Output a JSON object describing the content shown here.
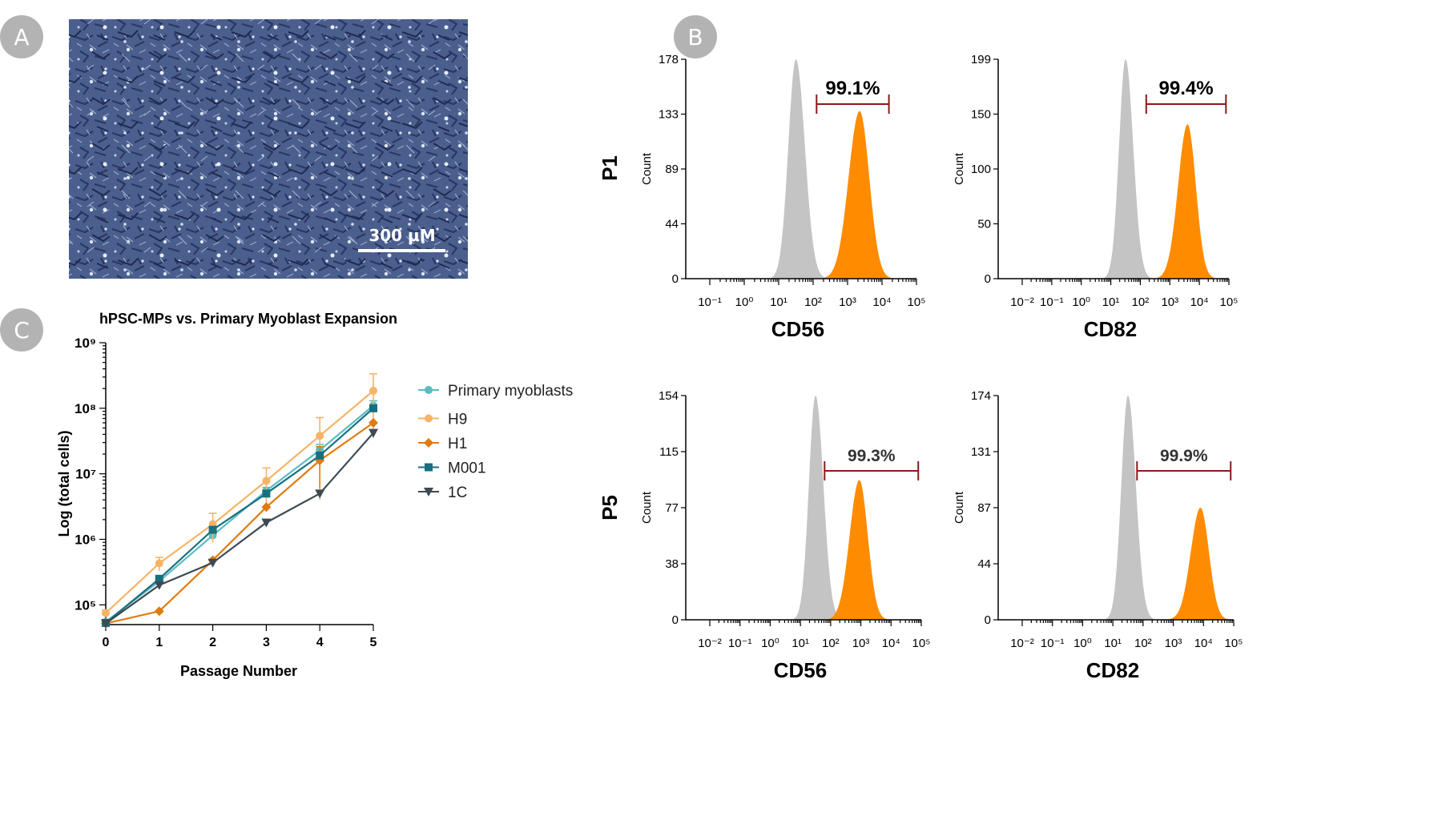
{
  "panels": {
    "A": {
      "label": "A",
      "scale_bar_label": "300 μM"
    },
    "B": {
      "label": "B",
      "row_labels": [
        "P1",
        "P5"
      ],
      "histograms": [
        {
          "id": "p1-cd56",
          "row": "P1",
          "marker": "CD56",
          "ylabel": "Count",
          "y_ticks": [
            "0",
            "44",
            "89",
            "133",
            "178"
          ],
          "ymax": 178,
          "x_exp": [
            -1,
            0,
            1,
            2,
            3,
            4,
            5
          ],
          "gate_percent": "99.1%",
          "gate_range_log": [
            2.1,
            4.2
          ],
          "control_peak_log": 1.5,
          "control_peak_count": 178,
          "sample_peak_log": 3.35,
          "sample_peak_count": 136
        },
        {
          "id": "p1-cd82",
          "row": "P1",
          "marker": "CD82",
          "ylabel": "Count",
          "y_ticks": [
            "0",
            "50",
            "100",
            "150",
            "199"
          ],
          "ymax": 199,
          "x_exp": [
            -2,
            -1,
            0,
            1,
            2,
            3,
            4,
            5
          ],
          "gate_percent": "99.4%",
          "gate_range_log": [
            2.2,
            4.9
          ],
          "control_peak_log": 1.5,
          "control_peak_count": 199,
          "sample_peak_log": 3.6,
          "sample_peak_count": 140
        },
        {
          "id": "p5-cd56",
          "row": "P5",
          "marker": "CD56",
          "ylabel": "Count",
          "y_ticks": [
            "0",
            "38",
            "77",
            "115",
            "154"
          ],
          "ymax": 154,
          "x_exp": [
            -2,
            -1,
            0,
            1,
            2,
            3,
            4,
            5
          ],
          "gate_percent": "99.3%",
          "gate_range_log": [
            1.8,
            4.9
          ],
          "control_peak_log": 1.5,
          "control_peak_count": 154,
          "sample_peak_log": 2.95,
          "sample_peak_count": 96
        },
        {
          "id": "p5-cd82",
          "row": "P5",
          "marker": "CD82",
          "ylabel": "Count",
          "y_ticks": [
            "0",
            "44",
            "87",
            "131",
            "174"
          ],
          "ymax": 174,
          "x_exp": [
            -2,
            -1,
            0,
            1,
            2,
            3,
            4,
            5
          ],
          "gate_percent": "99.9%",
          "gate_range_log": [
            1.8,
            4.9
          ],
          "control_peak_log": 1.5,
          "control_peak_count": 174,
          "sample_peak_log": 3.9,
          "sample_peak_count": 87
        }
      ],
      "colors": {
        "control": "#c4c4c4",
        "sample": "#ff8c00",
        "gate": "#8b1a1a"
      }
    },
    "C": {
      "label": "C",
      "chart_data": {
        "type": "line",
        "title": "hPSC-MPs vs. Primary Myoblast Expansion",
        "xlabel": "Passage Number",
        "ylabel": "Log (total cells)",
        "y_scale": "log",
        "ylim": [
          50000,
          1000000000
        ],
        "x": [
          0,
          1,
          2,
          3,
          4,
          5
        ],
        "y_tick_labels": [
          "10⁵",
          "10⁶",
          "10⁷",
          "10⁸",
          "10⁹"
        ],
        "y_tick_values": [
          100000,
          1000000,
          10000000,
          100000000,
          1000000000
        ],
        "legend_position": "right",
        "series": [
          {
            "name": "Primary myoblasts",
            "color": "#5bbcc4",
            "marker": "circle",
            "values": [
              55000,
              230000,
              1150000,
              5500000,
              23000000,
              110000000
            ],
            "err": [
              0,
              20000,
              200000,
              700000,
              5000000,
              20000000
            ]
          },
          {
            "name": "H9",
            "color": "#f7b366",
            "marker": "circle",
            "values": [
              75000,
              430000,
              1700000,
              7800000,
              38000000,
              185000000
            ],
            "err": [
              8000,
              100000,
              800000,
              4500000,
              34000000,
              150000000
            ]
          },
          {
            "name": "H1",
            "color": "#e07b10",
            "marker": "diamond",
            "values": [
              52000,
              80000,
              480000,
              3100000,
              16000000,
              60000000
            ],
            "err": [
              0,
              0,
              0,
              0,
              10000000,
              0
            ]
          },
          {
            "name": "M001",
            "color": "#17707f",
            "marker": "square",
            "values": [
              53000,
              250000,
              1400000,
              5000000,
              19000000,
              100000000
            ],
            "err": [
              0,
              0,
              0,
              0,
              0,
              0
            ]
          },
          {
            "name": "1C",
            "color": "#3d4a52",
            "marker": "triangle-down",
            "values": [
              52000,
              200000,
              440000,
              1800000,
              5000000,
              42000000
            ],
            "err": [
              0,
              0,
              0,
              0,
              0,
              0
            ]
          }
        ]
      }
    }
  }
}
